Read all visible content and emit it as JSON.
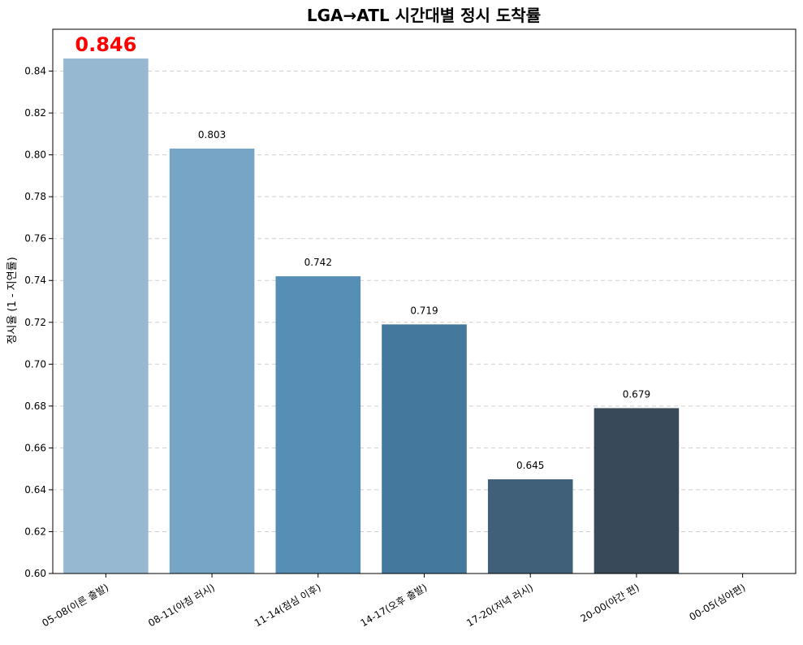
{
  "chart_data": {
    "type": "bar",
    "title": "LGA→ATL 시간대별 정시 도착률",
    "xlabel": "",
    "ylabel": "정시율 (1 - 지연률)",
    "categories": [
      "05-08(이른 출발)",
      "08-11(아침 러시)",
      "11-14(점심 이후)",
      "14-17(오후 출발)",
      "17-20(저녁 러시)",
      "20-00(야간 편)",
      "00-05(심야편)"
    ],
    "values": [
      0.846,
      0.803,
      0.742,
      0.719,
      0.645,
      0.679,
      null
    ],
    "value_labels": [
      "0.846",
      "0.803",
      "0.742",
      "0.719",
      "0.645",
      "0.679",
      ""
    ],
    "highlight_index": 0,
    "ylim": [
      0.6,
      0.86
    ],
    "yticks": [
      0.6,
      0.62,
      0.64,
      0.66,
      0.68,
      0.7,
      0.72,
      0.74,
      0.76,
      0.78,
      0.8,
      0.82,
      0.84
    ],
    "ytick_labels": [
      "0.60",
      "0.62",
      "0.64",
      "0.66",
      "0.68",
      "0.70",
      "0.72",
      "0.74",
      "0.76",
      "0.78",
      "0.80",
      "0.82",
      "0.84"
    ],
    "grid": "y-dashed",
    "colors": {
      "bars": [
        "#97b8d1",
        "#76a5c5",
        "#568eb5",
        "#44789c",
        "#3f6078",
        "#384a59",
        "#2f3840"
      ],
      "highlight_label": "#ff0000",
      "label": "#000000",
      "grid": "#cfcfcf",
      "axis": "#000000"
    }
  }
}
